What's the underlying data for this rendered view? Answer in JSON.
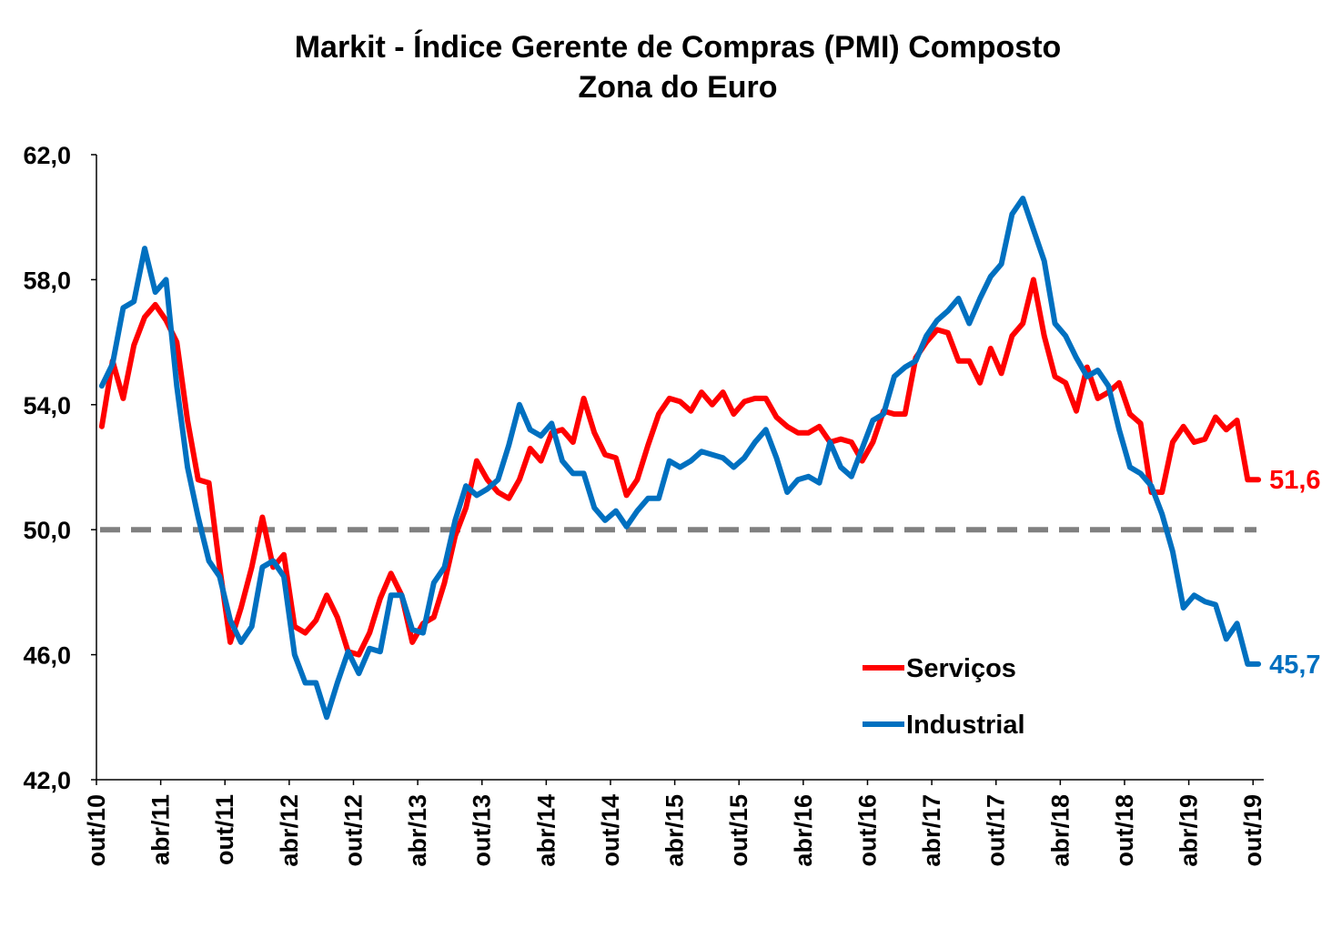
{
  "chart_data": {
    "type": "line",
    "title": "Markit - Índice Gerente de Compras (PMI) Composto",
    "subtitle": "Zona do Euro",
    "xlabel": "",
    "ylabel": "",
    "ylim": [
      42,
      62
    ],
    "yticks": [
      "62,0",
      "58,0",
      "54,0",
      "50,0",
      "46,0",
      "42,0"
    ],
    "ytick_values": [
      62,
      58,
      54,
      50,
      46,
      42
    ],
    "xticks": [
      "out/10",
      "abr/11",
      "out/11",
      "abr/12",
      "out/12",
      "abr/13",
      "out/13",
      "abr/14",
      "out/14",
      "abr/15",
      "out/15",
      "abr/16",
      "out/16",
      "abr/17",
      "out/17",
      "abr/18",
      "out/18",
      "abr/19",
      "out/19"
    ],
    "grid": false,
    "reference_line": 50.0,
    "legend_position": "bottom-right",
    "x": [
      "out/10",
      "nov/10",
      "dez/10",
      "jan/11",
      "fev/11",
      "mar/11",
      "abr/11",
      "mai/11",
      "jun/11",
      "jul/11",
      "ago/11",
      "set/11",
      "out/11",
      "nov/11",
      "dez/11",
      "jan/12",
      "fev/12",
      "mar/12",
      "abr/12",
      "mai/12",
      "jun/12",
      "jul/12",
      "ago/12",
      "set/12",
      "out/12",
      "nov/12",
      "dez/12",
      "jan/13",
      "fev/13",
      "mar/13",
      "abr/13",
      "mai/13",
      "jun/13",
      "jul/13",
      "ago/13",
      "set/13",
      "out/13",
      "nov/13",
      "dez/13",
      "jan/14",
      "fev/14",
      "mar/14",
      "abr/14",
      "mai/14",
      "jun/14",
      "jul/14",
      "ago/14",
      "set/14",
      "out/14",
      "nov/14",
      "dez/14",
      "jan/15",
      "fev/15",
      "mar/15",
      "abr/15",
      "mai/15",
      "jun/15",
      "jul/15",
      "ago/15",
      "set/15",
      "out/15",
      "nov/15",
      "dez/15",
      "jan/16",
      "fev/16",
      "mar/16",
      "abr/16",
      "mai/16",
      "jun/16",
      "jul/16",
      "ago/16",
      "set/16",
      "out/16",
      "nov/16",
      "dez/16",
      "jan/17",
      "fev/17",
      "mar/17",
      "abr/17",
      "mai/17",
      "jun/17",
      "jul/17",
      "ago/17",
      "set/17",
      "out/17",
      "nov/17",
      "dez/17",
      "jan/18",
      "fev/18",
      "mar/18",
      "abr/18",
      "mai/18",
      "jun/18",
      "jul/18",
      "ago/18",
      "set/18",
      "out/18",
      "nov/18",
      "dez/18",
      "jan/19",
      "fev/19",
      "mar/19",
      "abr/19",
      "mai/19",
      "jun/19",
      "jul/19",
      "ago/19",
      "set/19",
      "out/19"
    ],
    "series": [
      {
        "name": "Serviços",
        "color": "#ff0000",
        "end_label": "51,6",
        "values": [
          53.3,
          55.4,
          54.2,
          55.9,
          56.8,
          57.2,
          56.7,
          56.0,
          53.5,
          51.6,
          51.5,
          48.8,
          46.4,
          47.5,
          48.8,
          50.4,
          48.8,
          49.2,
          46.9,
          46.7,
          47.1,
          47.9,
          47.2,
          46.1,
          46.0,
          46.7,
          47.8,
          48.6,
          47.9,
          46.4,
          47.0,
          47.2,
          48.3,
          49.8,
          50.7,
          52.2,
          51.6,
          51.2,
          51.0,
          51.6,
          52.6,
          52.2,
          53.1,
          53.2,
          52.8,
          54.2,
          53.1,
          52.4,
          52.3,
          51.1,
          51.6,
          52.7,
          53.7,
          54.2,
          54.1,
          53.8,
          54.4,
          54.0,
          54.4,
          53.7,
          54.1,
          54.2,
          54.2,
          53.6,
          53.3,
          53.1,
          53.1,
          53.3,
          52.8,
          52.9,
          52.8,
          52.2,
          52.8,
          53.8,
          53.7,
          53.7,
          55.5,
          56.0,
          56.4,
          56.3,
          55.4,
          55.4,
          54.7,
          55.8,
          55.0,
          56.2,
          56.6,
          58.0,
          56.2,
          54.9,
          54.7,
          53.8,
          55.2,
          54.2,
          54.4,
          54.7,
          53.7,
          53.4,
          51.2,
          51.2,
          52.8,
          53.3,
          52.8,
          52.9,
          53.6,
          53.2,
          53.5,
          51.6,
          51.6
        ]
      },
      {
        "name": "Industrial",
        "color": "#0070c0",
        "end_label": "45,7",
        "values": [
          54.6,
          55.3,
          57.1,
          57.3,
          59.0,
          57.6,
          58.0,
          54.6,
          52.0,
          50.4,
          49.0,
          48.5,
          47.1,
          46.4,
          46.9,
          48.8,
          49.0,
          48.5,
          46.0,
          45.1,
          45.1,
          44.0,
          45.1,
          46.1,
          45.4,
          46.2,
          46.1,
          47.9,
          47.9,
          46.8,
          46.7,
          48.3,
          48.8,
          50.3,
          51.4,
          51.1,
          51.3,
          51.6,
          52.7,
          54.0,
          53.2,
          53.0,
          53.4,
          52.2,
          51.8,
          51.8,
          50.7,
          50.3,
          50.6,
          50.1,
          50.6,
          51.0,
          51.0,
          52.2,
          52.0,
          52.2,
          52.5,
          52.4,
          52.3,
          52.0,
          52.3,
          52.8,
          53.2,
          52.3,
          51.2,
          51.6,
          51.7,
          51.5,
          52.8,
          52.0,
          51.7,
          52.6,
          53.5,
          53.7,
          54.9,
          55.2,
          55.4,
          56.2,
          56.7,
          57.0,
          57.4,
          56.6,
          57.4,
          58.1,
          58.5,
          60.1,
          60.6,
          59.6,
          58.6,
          56.6,
          56.2,
          55.5,
          54.9,
          55.1,
          54.6,
          53.2,
          52.0,
          51.8,
          51.4,
          50.5,
          49.3,
          47.5,
          47.9,
          47.7,
          47.6,
          46.5,
          47.0,
          45.7,
          45.7
        ]
      }
    ]
  }
}
